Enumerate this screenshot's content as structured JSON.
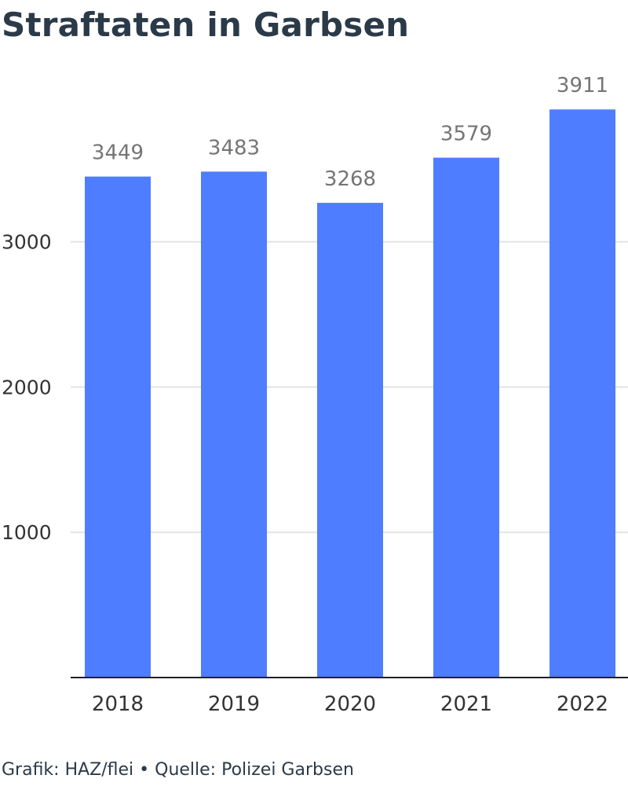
{
  "title": "Straftaten in Garbsen",
  "footer": "Grafik: HAZ/flei • Quelle: Polizei Garbsen",
  "colors": {
    "bar": "#4f7dff",
    "value_label": "#757575",
    "axis_text": "#333333",
    "gridline": "#e3e3e3",
    "baseline": "#222222",
    "title": "#2b3a48"
  },
  "chart_data": {
    "type": "bar",
    "title": "Straftaten in Garbsen",
    "xlabel": "",
    "ylabel": "",
    "categories": [
      "2018",
      "2019",
      "2020",
      "2021",
      "2022"
    ],
    "values": [
      3449,
      3483,
      3268,
      3579,
      3911
    ],
    "ylim": [
      0,
      4000
    ],
    "yticks": [
      1000,
      2000,
      3000
    ],
    "grid": true,
    "data_labels": true
  }
}
